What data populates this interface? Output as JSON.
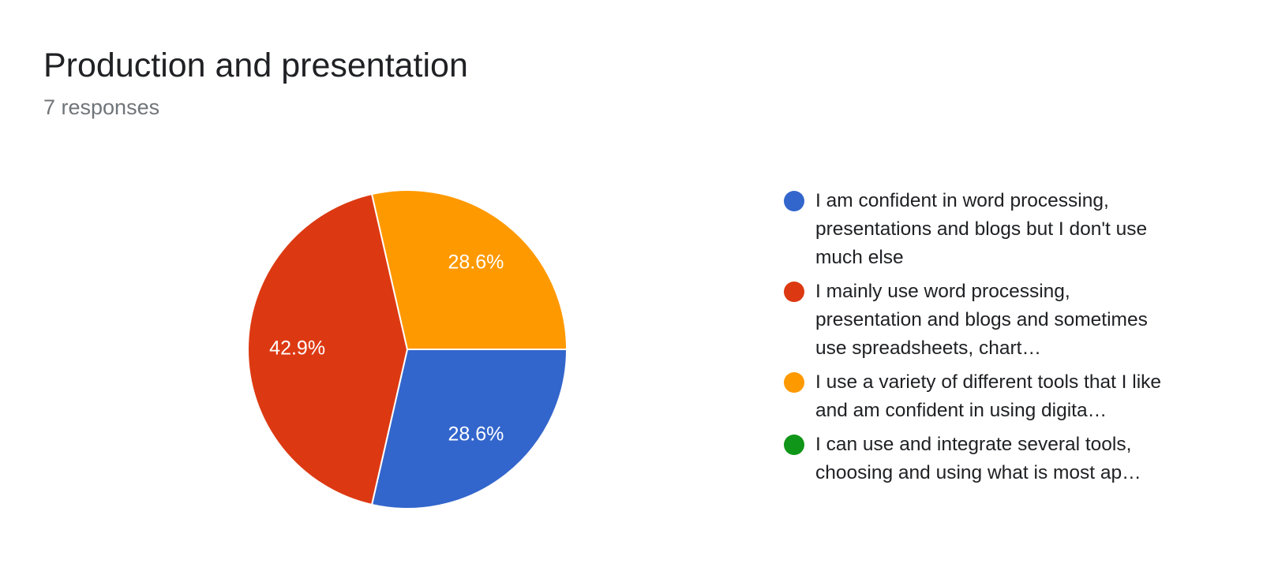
{
  "chart_data": {
    "type": "pie",
    "title": "Production and presentation",
    "subtitle": "7 responses",
    "categories": [
      "I am confident in word processing, presentations and blogs but I don't use much else",
      "I mainly use word processing, presentation and blogs and sometimes use spreadsheets, chart…",
      "I use a variety of different tools that I like and am confident in using digita…",
      "I can use and integrate several tools, choosing and using what is most ap…"
    ],
    "values": [
      28.6,
      42.9,
      28.6,
      0
    ],
    "value_labels": [
      "28.6%",
      "42.9%",
      "28.6%",
      null
    ],
    "colors": [
      "#3366cc",
      "#dc3912",
      "#ff9900",
      "#109618"
    ]
  }
}
